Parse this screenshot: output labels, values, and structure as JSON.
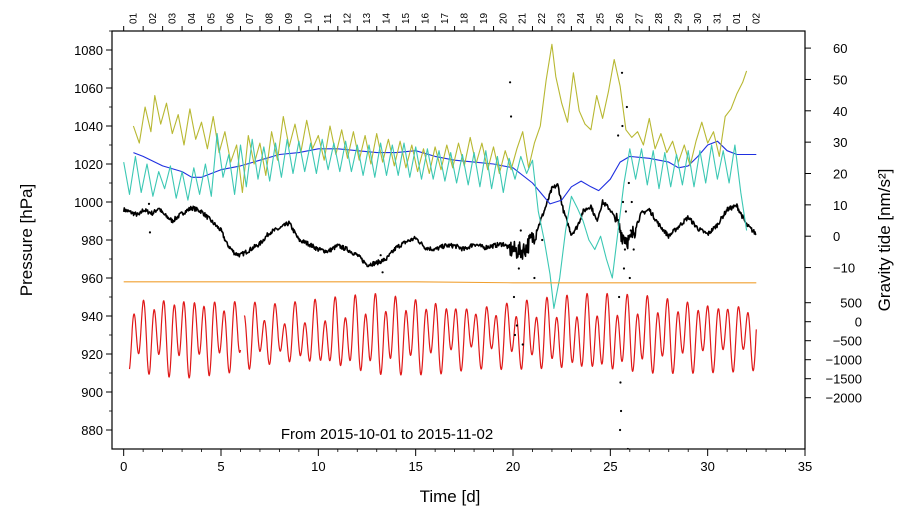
{
  "chart_data": {
    "type": "line",
    "caption": "From 2015-10-01 to 2015-11-02",
    "xlabel": "Time [d]",
    "ylabel_left": "Pressure [hPa]",
    "ylabel_right": "Gravity tide [nm/s²]",
    "xlim": [
      -0.6,
      35
    ],
    "x_ticks": [
      0,
      5,
      10,
      15,
      20,
      25,
      30,
      35
    ],
    "x_tick_labels": [
      "0",
      "5",
      "10",
      "15",
      "20",
      "25",
      "30",
      "35"
    ],
    "ylim_left": [
      870,
      1090
    ],
    "y_left_ticks": [
      880,
      900,
      920,
      940,
      960,
      980,
      1000,
      1020,
      1040,
      1060,
      1080
    ],
    "y_left_tick_labels": [
      "880",
      "900",
      "920",
      "940",
      "960",
      "980",
      "1000",
      "1020",
      "1040",
      "1060",
      "1080"
    ],
    "y_right_upper_ticks": [
      -10,
      0,
      10,
      20,
      30,
      40,
      50,
      60
    ],
    "y_right_upper_tick_labels": [
      "−10",
      "0",
      "10",
      "20",
      "30",
      "40",
      "50",
      "60"
    ],
    "y_right_upper_pressure_map": {
      "value_a": 0,
      "pressure_a": 982,
      "value_b": 60,
      "pressure_b": 1081
    },
    "y_right_lower_ticks": [
      -2000,
      -1500,
      -1000,
      -500,
      0,
      500
    ],
    "y_right_lower_tick_labels": [
      "−2000",
      "−1500",
      "−1000",
      "−500",
      "0",
      "500"
    ],
    "y_right_lower_pressure_map": {
      "value_a": 0,
      "pressure_a": 937,
      "value_b": 500,
      "pressure_b": 947
    },
    "day_ticks_x": [
      0,
      1,
      2,
      3,
      4,
      5,
      6,
      7,
      8,
      9,
      10,
      11,
      12,
      13,
      14,
      15,
      16,
      17,
      18,
      19,
      20,
      21,
      22,
      23,
      24,
      25,
      26,
      27,
      28,
      29,
      30,
      31,
      32
    ],
    "day_labels": [
      "01",
      "02",
      "03",
      "04",
      "05",
      "06",
      "07",
      "08",
      "09",
      "10",
      "11",
      "12",
      "13",
      "14",
      "15",
      "16",
      "17",
      "18",
      "19",
      "20",
      "21",
      "22",
      "23",
      "24",
      "25",
      "26",
      "27",
      "28",
      "29",
      "30",
      "31",
      "01",
      "02"
    ],
    "colors": {
      "black": "#000000",
      "blue": "#1f2fe0",
      "olive": "#b8b832",
      "cyan": "#3cc8b4",
      "orange": "#f0a030",
      "red": "#e01818"
    },
    "series": [
      {
        "name": "black pressure",
        "color": "#000000",
        "axis": "left",
        "x": [
          0.0,
          0.5,
          0.8,
          1.0,
          1.2,
          1.5,
          1.8,
          2.0,
          2.5,
          3.0,
          3.5,
          4.0,
          4.5,
          5.0,
          5.3,
          5.7,
          6.0,
          6.5,
          7.0,
          7.5,
          8.0,
          8.5,
          9.0,
          9.5,
          10.0,
          10.5,
          11.0,
          11.5,
          12.0,
          12.5,
          13.0,
          13.5,
          14.0,
          14.5,
          15.0,
          15.5,
          16.0,
          16.5,
          17.0,
          17.5,
          18.0,
          18.5,
          19.0,
          19.5,
          19.9,
          20.3,
          20.6,
          21.0,
          21.3,
          21.7,
          22.0,
          22.3,
          22.6,
          23.0,
          23.3,
          23.6,
          24.0,
          24.3,
          24.6,
          25.0,
          25.3,
          25.6,
          26.0,
          26.3,
          26.6,
          27.0,
          27.5,
          28.0,
          28.5,
          29.0,
          29.5,
          30.0,
          30.5,
          31.0,
          31.5,
          32.0,
          32.5
        ],
        "y": [
          996,
          994,
          993,
          996,
          995,
          994,
          997,
          994,
          990,
          994,
          997,
          995,
          990,
          985,
          978,
          973,
          972,
          975,
          978,
          984,
          986,
          989,
          980,
          978,
          975,
          974,
          977,
          975,
          972,
          967,
          968,
          970,
          976,
          979,
          981,
          976,
          975,
          977,
          977,
          975,
          978,
          976,
          977,
          978,
          975,
          974,
          975,
          981,
          987,
          998,
          1007,
          1009,
          995,
          983,
          987,
          995,
          998,
          990,
          1000,
          996,
          990,
          983,
          979,
          987,
          994,
          996,
          988,
          982,
          987,
          992,
          986,
          983,
          988,
          996,
          998,
          988,
          983
        ]
      },
      {
        "name": "blue pressure",
        "color": "#1f2fe0",
        "axis": "left",
        "x": [
          0.5,
          1.0,
          2.0,
          3.0,
          3.5,
          4.0,
          5.0,
          6.0,
          7.0,
          8.0,
          9.0,
          10.0,
          11.0,
          12.0,
          13.0,
          14.0,
          15.0,
          16.0,
          17.0,
          18.0,
          19.0,
          20.0,
          21.0,
          21.9,
          22.5,
          23.0,
          23.5,
          24.0,
          24.4,
          25.0,
          25.5,
          26.0,
          27.0,
          28.0,
          28.5,
          29.0,
          29.5,
          30.0,
          30.5,
          31.0,
          31.5,
          32.0,
          32.5
        ],
        "y": [
          1026,
          1024,
          1019,
          1016,
          1013,
          1013,
          1017,
          1019,
          1022,
          1025,
          1026,
          1028,
          1028,
          1027,
          1026,
          1026,
          1027,
          1024,
          1022,
          1021,
          1020,
          1018,
          1010,
          999,
          1001,
          1008,
          1011,
          1008,
          1006,
          1012,
          1021,
          1024,
          1023,
          1021,
          1018,
          1019,
          1024,
          1030,
          1032,
          1027,
          1025,
          1025,
          1025
        ]
      },
      {
        "name": "olive gravity residual",
        "color": "#b8b832",
        "axis": "left",
        "x": [
          0.5,
          0.8,
          1.1,
          1.4,
          1.6,
          1.9,
          2.2,
          2.5,
          2.8,
          3.1,
          3.4,
          3.7,
          4.0,
          4.3,
          4.6,
          4.9,
          5.2,
          5.5,
          5.8,
          6.1,
          6.4,
          6.7,
          7.0,
          7.3,
          7.6,
          7.9,
          8.2,
          8.5,
          8.8,
          9.1,
          9.4,
          9.7,
          10.0,
          10.3,
          10.6,
          10.9,
          11.2,
          11.5,
          11.8,
          12.1,
          12.4,
          12.7,
          13.0,
          13.3,
          13.6,
          13.9,
          14.2,
          14.5,
          14.8,
          15.1,
          15.4,
          15.7,
          16.0,
          16.3,
          16.6,
          16.9,
          17.2,
          17.5,
          17.8,
          18.1,
          18.4,
          18.7,
          19.0,
          19.3,
          19.6,
          19.9,
          20.2,
          20.5,
          20.8,
          21.1,
          21.4,
          21.7,
          22.0,
          22.2,
          22.5,
          22.8,
          23.1,
          23.4,
          23.7,
          24.0,
          24.3,
          24.6,
          24.9,
          25.2,
          25.5,
          25.8,
          26.1,
          26.4,
          26.7,
          27.0,
          27.3,
          27.6,
          27.9,
          28.2,
          28.5,
          28.8,
          29.1,
          29.4,
          29.7,
          30.0,
          30.3,
          30.6,
          30.9,
          31.2,
          31.5,
          31.8,
          32.0
        ],
        "y": [
          1040,
          1031,
          1050,
          1037,
          1056,
          1041,
          1052,
          1036,
          1046,
          1030,
          1049,
          1033,
          1042,
          1028,
          1045,
          1026,
          1037,
          1021,
          1030,
          1005,
          1035,
          1020,
          1031,
          1014,
          1037,
          1022,
          1045,
          1029,
          1041,
          1026,
          1043,
          1028,
          1035,
          1022,
          1040,
          1025,
          1038,
          1023,
          1037,
          1022,
          1035,
          1020,
          1036,
          1021,
          1033,
          1019,
          1032,
          1018,
          1030,
          1016,
          1028,
          1015,
          1029,
          1017,
          1030,
          1018,
          1031,
          1019,
          1034,
          1020,
          1031,
          1017,
          1029,
          1015,
          1027,
          1017,
          1028,
          1037,
          1018,
          1031,
          1040,
          1064,
          1083,
          1066,
          1052,
          1042,
          1068,
          1048,
          1041,
          1038,
          1056,
          1044,
          1058,
          1075,
          1061,
          1038,
          1034,
          1037,
          1030,
          1044,
          1028,
          1036,
          1026,
          1032,
          1021,
          1030,
          1019,
          1032,
          1042,
          1031,
          1037,
          1024,
          1045,
          1049,
          1057,
          1063,
          1069
        ]
      },
      {
        "name": "cyan gravity residual",
        "color": "#3cc8b4",
        "axis": "left",
        "x": [
          0.0,
          0.3,
          0.6,
          0.9,
          1.2,
          1.5,
          1.8,
          2.1,
          2.4,
          2.7,
          3.0,
          3.3,
          3.6,
          3.9,
          4.2,
          4.5,
          4.8,
          5.1,
          5.4,
          5.7,
          6.0,
          6.3,
          6.6,
          6.9,
          7.2,
          7.5,
          7.8,
          8.1,
          8.4,
          8.7,
          9.0,
          9.3,
          9.6,
          9.9,
          10.2,
          10.5,
          10.8,
          11.1,
          11.4,
          11.7,
          12.0,
          12.3,
          12.6,
          12.9,
          13.2,
          13.5,
          13.8,
          14.1,
          14.4,
          14.7,
          15.0,
          15.3,
          15.6,
          15.9,
          16.2,
          16.5,
          16.8,
          17.1,
          17.4,
          17.7,
          18.0,
          18.3,
          18.6,
          18.9,
          19.2,
          19.5,
          19.8,
          20.1,
          20.4,
          20.7,
          21.0,
          21.3,
          21.6,
          21.9,
          22.1,
          22.4,
          22.7,
          23.0,
          23.3,
          23.6,
          23.9,
          24.2,
          24.5,
          24.8,
          25.1,
          25.4,
          25.7,
          26.0,
          26.3,
          26.6,
          26.9,
          27.2,
          27.5,
          27.8,
          28.1,
          28.4,
          28.7,
          29.0,
          29.3,
          29.6,
          29.9,
          30.2,
          30.5,
          30.8,
          31.1,
          31.4,
          31.7,
          32.0
        ],
        "y": [
          1021,
          1004,
          1024,
          1005,
          1020,
          1003,
          1016,
          1007,
          1019,
          1002,
          1016,
          1001,
          1018,
          1004,
          1020,
          1003,
          1036,
          1013,
          1025,
          1004,
          1030,
          1008,
          1033,
          1012,
          1029,
          1011,
          1031,
          1013,
          1033,
          1015,
          1032,
          1016,
          1031,
          1015,
          1033,
          1017,
          1031,
          1016,
          1032,
          1016,
          1030,
          1014,
          1030,
          1013,
          1031,
          1014,
          1030,
          1014,
          1031,
          1013,
          1029,
          1012,
          1028,
          1012,
          1027,
          1011,
          1026,
          1010,
          1025,
          1009,
          1026,
          1008,
          1027,
          1007,
          1024,
          1005,
          1023,
          1012,
          1024,
          1015,
          1022,
          995,
          980,
          962,
          944,
          960,
          985,
          1003,
          997,
          990,
          980,
          975,
          982,
          970,
          960,
          985,
          1010,
          1028,
          1012,
          1028,
          1009,
          1027,
          1007,
          1026,
          1008,
          1025,
          1009,
          1027,
          1008,
          1027,
          1010,
          1030,
          1012,
          1027,
          1010,
          1030,
          1005,
          985
        ]
      },
      {
        "name": "orange reference",
        "color": "#f0a030",
        "axis": "left",
        "x": [
          0.0,
          5.0,
          10.0,
          15.0,
          20.0,
          25.0,
          30.0,
          32.5
        ],
        "y": [
          958,
          958,
          958,
          958,
          957.5,
          957.5,
          957.5,
          957.5
        ]
      },
      {
        "name": "red gravity tide",
        "color": "#e01818",
        "axis": "right-lower",
        "segments": [
          [
            0.3,
            6.0
          ],
          [
            6.2,
            32.5
          ]
        ],
        "waveform": {
          "center": 930,
          "semidiurnal_amplitude": [
            14,
            17,
            14,
            11,
            13,
            17,
            15,
            12,
            14,
            16,
            16,
            14,
            13
          ],
          "amplitude_knot_days": [
            0,
            3,
            6,
            8,
            10,
            13,
            16,
            18,
            21,
            24,
            27,
            30,
            33
          ],
          "diurnal_amplitude": 6,
          "semidiurnal_period_d": 0.5175,
          "diurnal_period_d": 0.9973
        }
      },
      {
        "name": "black spikes",
        "color": "#000000",
        "axis": "left",
        "type": "scatter",
        "x": [
          1.3,
          1.35,
          13.2,
          13.3,
          19.85,
          19.9,
          20.05,
          20.1,
          20.2,
          20.3,
          20.4,
          20.5,
          20.6,
          21.1,
          21.5,
          25.4,
          25.45,
          25.5,
          25.52,
          25.55,
          25.6,
          25.62,
          25.65,
          25.7,
          25.75,
          25.8,
          25.85,
          25.9,
          25.95,
          26.0,
          26.05,
          26.1,
          26.2
        ],
        "y": [
          999,
          984,
          972,
          963,
          1063,
          1045,
          950,
          930,
          935,
          965,
          985,
          925,
          975,
          960,
          980,
          1035,
          950,
          880,
          905,
          890,
          1068,
          1040,
          1000,
          965,
          975,
          995,
          1050,
          870,
          1010,
          960,
          985,
          1000,
          975
        ]
      }
    ]
  }
}
